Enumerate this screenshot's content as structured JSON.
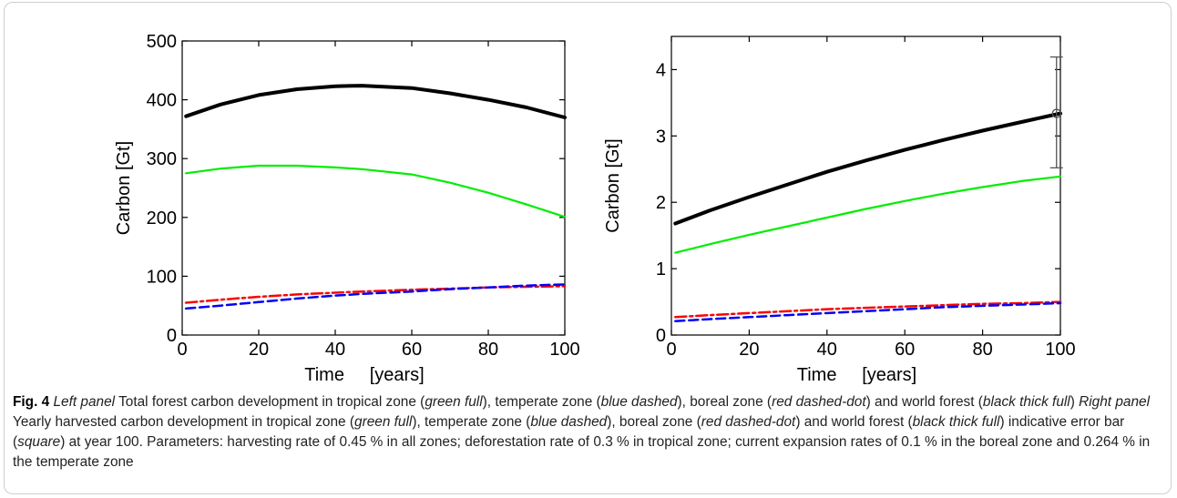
{
  "chart_data": [
    {
      "type": "line",
      "panel": "Left panel",
      "xlabel": "Time     [years]",
      "ylabel": "Carbon [Gt]",
      "xlim": [
        0,
        100
      ],
      "ylim": [
        0,
        500
      ],
      "xticks": [
        0,
        20,
        40,
        60,
        80,
        100
      ],
      "yticks": [
        0,
        100,
        200,
        300,
        400,
        500
      ],
      "grid": false,
      "x": [
        1,
        10,
        20,
        30,
        40,
        47,
        60,
        70,
        80,
        90,
        100
      ],
      "series": [
        {
          "name": "world forest",
          "style": "black thick full",
          "color": "#000000",
          "values": [
            372,
            392,
            408,
            418,
            423,
            424,
            420,
            411,
            400,
            387,
            370
          ]
        },
        {
          "name": "tropical zone",
          "style": "green full",
          "color": "#00ee00",
          "values": [
            275,
            283,
            288,
            288,
            285,
            282,
            273,
            259,
            242,
            222,
            201
          ]
        },
        {
          "name": "boreal zone",
          "style": "red dashed-dot",
          "color": "#ff0000",
          "values": [
            55,
            60,
            65,
            69,
            72,
            74,
            77,
            79,
            81,
            82,
            83
          ]
        },
        {
          "name": "temperate zone",
          "style": "blue dashed",
          "color": "#0000ff",
          "values": [
            45,
            50,
            56,
            62,
            67,
            70,
            74,
            78,
            81,
            84,
            86
          ]
        }
      ]
    },
    {
      "type": "line",
      "panel": "Right panel",
      "xlabel": "Time     [years]",
      "ylabel": "Carbon [Gt]",
      "xlim": [
        0,
        100
      ],
      "ylim": [
        0,
        4.5
      ],
      "xticks": [
        0,
        20,
        40,
        60,
        80,
        100
      ],
      "yticks": [
        0,
        1,
        2,
        3,
        4
      ],
      "grid": false,
      "x": [
        1,
        10,
        20,
        30,
        40,
        50,
        60,
        70,
        80,
        90,
        100
      ],
      "series": [
        {
          "name": "world forest",
          "style": "black thick full",
          "color": "#000000",
          "values": [
            1.68,
            1.88,
            2.08,
            2.27,
            2.46,
            2.63,
            2.79,
            2.94,
            3.08,
            3.21,
            3.34
          ]
        },
        {
          "name": "tropical zone",
          "style": "green full",
          "color": "#00ee00",
          "values": [
            1.24,
            1.37,
            1.51,
            1.64,
            1.77,
            1.9,
            2.02,
            2.13,
            2.23,
            2.32,
            2.39
          ]
        },
        {
          "name": "boreal zone",
          "style": "red dashed-dot",
          "color": "#ff0000",
          "values": [
            0.27,
            0.3,
            0.33,
            0.36,
            0.39,
            0.41,
            0.43,
            0.45,
            0.47,
            0.48,
            0.5
          ]
        },
        {
          "name": "temperate zone",
          "style": "blue dashed",
          "color": "#0000ff",
          "values": [
            0.21,
            0.24,
            0.27,
            0.3,
            0.33,
            0.36,
            0.39,
            0.42,
            0.44,
            0.46,
            0.48
          ]
        }
      ],
      "error_bar": {
        "x": 99,
        "y": 3.34,
        "low": 2.52,
        "high": 4.19
      }
    }
  ],
  "caption": {
    "fig": "Fig. 4",
    "p1": "Left panel",
    "t1": " Total forest carbon development in tropical zone (",
    "p2": "green full",
    "t2": "), temperate zone (",
    "p3": "blue dashed",
    "t3": "), boreal zone (",
    "p4": "red dashed-dot",
    "t4": ") and world forest (",
    "p5": "black thick full",
    "t5": ") ",
    "p6": "Right panel",
    "t6": " Yearly harvested carbon development in tropical zone (",
    "p7": "green full",
    "t7": "), temperate zone (",
    "p8": "blue dashed",
    "t8": "), boreal zone (",
    "p9": "red dashed-dot",
    "t9": ") and world forest (",
    "p10": "black thick full",
    "t10": ") indicative error bar (",
    "p11": "square",
    "t11": ") at year 100. Parameters: harvesting rate of 0.45 % in all zones; deforestation rate of 0.3 % in tropical zone; current expansion rates of 0.1 % in the boreal zone and 0.264 % in the temperate zone"
  }
}
